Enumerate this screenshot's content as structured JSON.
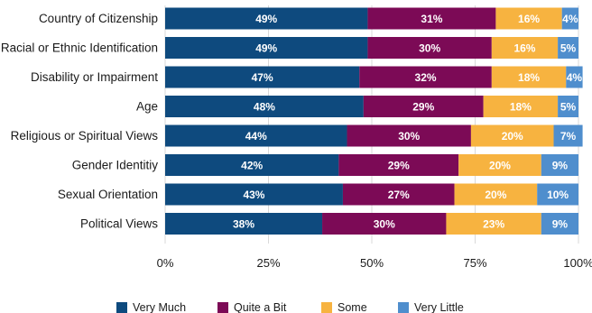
{
  "chart_data": {
    "type": "bar",
    "orientation": "horizontal",
    "stacked": true,
    "categories": [
      "Country of Citizenship",
      "Racial or Ethnic Identification",
      "Disability or Impairment",
      "Age",
      "Religious or Spiritual Views",
      "Gender Identitiy",
      "Sexual Orientation",
      "Political Views"
    ],
    "series": [
      {
        "name": "Very Much",
        "color": "#0e4a7e",
        "values": [
          49,
          49,
          47,
          48,
          44,
          42,
          43,
          38
        ]
      },
      {
        "name": "Quite a Bit",
        "color": "#7c0a56",
        "values": [
          31,
          30,
          32,
          29,
          30,
          29,
          27,
          30
        ]
      },
      {
        "name": "Some",
        "color": "#f7b340",
        "values": [
          16,
          16,
          18,
          18,
          20,
          20,
          20,
          23
        ]
      },
      {
        "name": "Very Little",
        "color": "#4f8ecd",
        "values": [
          4,
          5,
          4,
          5,
          7,
          9,
          10,
          9
        ]
      }
    ],
    "xlim": [
      0,
      100
    ],
    "xticks": [
      "0%",
      "25%",
      "50%",
      "75%",
      "100%"
    ],
    "value_suffix": "%",
    "grid": "vertical",
    "legend_position": "bottom"
  }
}
